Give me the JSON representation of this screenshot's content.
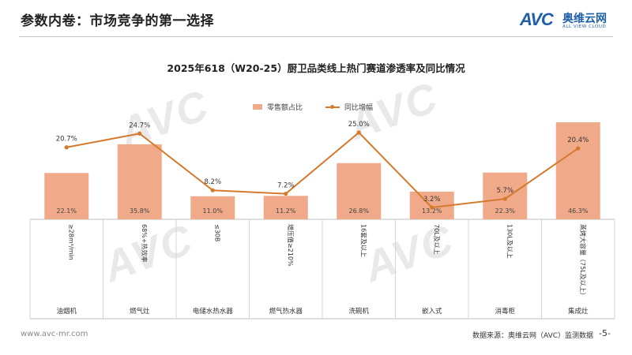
{
  "header": {
    "title": "参数内卷：市场竞争的第一选择",
    "logo_text": "AVC",
    "logo_cn": "奥维云网",
    "logo_en": "ALL VIEW CLOUD"
  },
  "watermark": {
    "text": "AVC",
    "sub": "ALL VIEW CLOUD"
  },
  "colors": {
    "bar": "#f0aa8a",
    "line": "#d47a2e",
    "accent": "#1f5fa8"
  },
  "chart_data": {
    "type": "bar",
    "title": "2025年618（W20-25）厨卫品类线上热门赛道渗透率及同比情况",
    "legend_position": "top-center",
    "grid": false,
    "categories": [
      "油烟机",
      "燃气灶",
      "电储水热水器",
      "燃气热水器",
      "洗碗机",
      "嵌入式",
      "消毒柜",
      "集成灶"
    ],
    "segments": [
      "≥28m³/min",
      "68%+热效率",
      "≤30B",
      "增压值≥210%",
      "16套及以上",
      "70L及以上",
      "130L及以上",
      "蒸烤大容量（75L及以上）"
    ],
    "series": [
      {
        "name": "零售额占比",
        "type": "bar",
        "values": [
          22.1,
          35.8,
          11.0,
          11.2,
          26.8,
          13.2,
          22.3,
          46.3
        ],
        "labels": [
          "22.1%",
          "35.8%",
          "11.0%",
          "11.2%",
          "26.8%",
          "13.2%",
          "22.3%",
          "46.3%"
        ]
      },
      {
        "name": "同比增幅",
        "type": "line",
        "values": [
          20.7,
          24.7,
          8.2,
          7.2,
          25.0,
          3.2,
          5.7,
          20.4
        ],
        "labels": [
          "20.7%",
          "24.7%",
          "8.2%",
          "7.2%",
          "25.0%",
          "3.2%",
          "5.7%",
          "20.4%"
        ]
      }
    ]
  },
  "footer": {
    "url": "www.avc-mr.com",
    "source": "数据来源：奥维云网（AVC）监测数据",
    "page": "-5-"
  }
}
